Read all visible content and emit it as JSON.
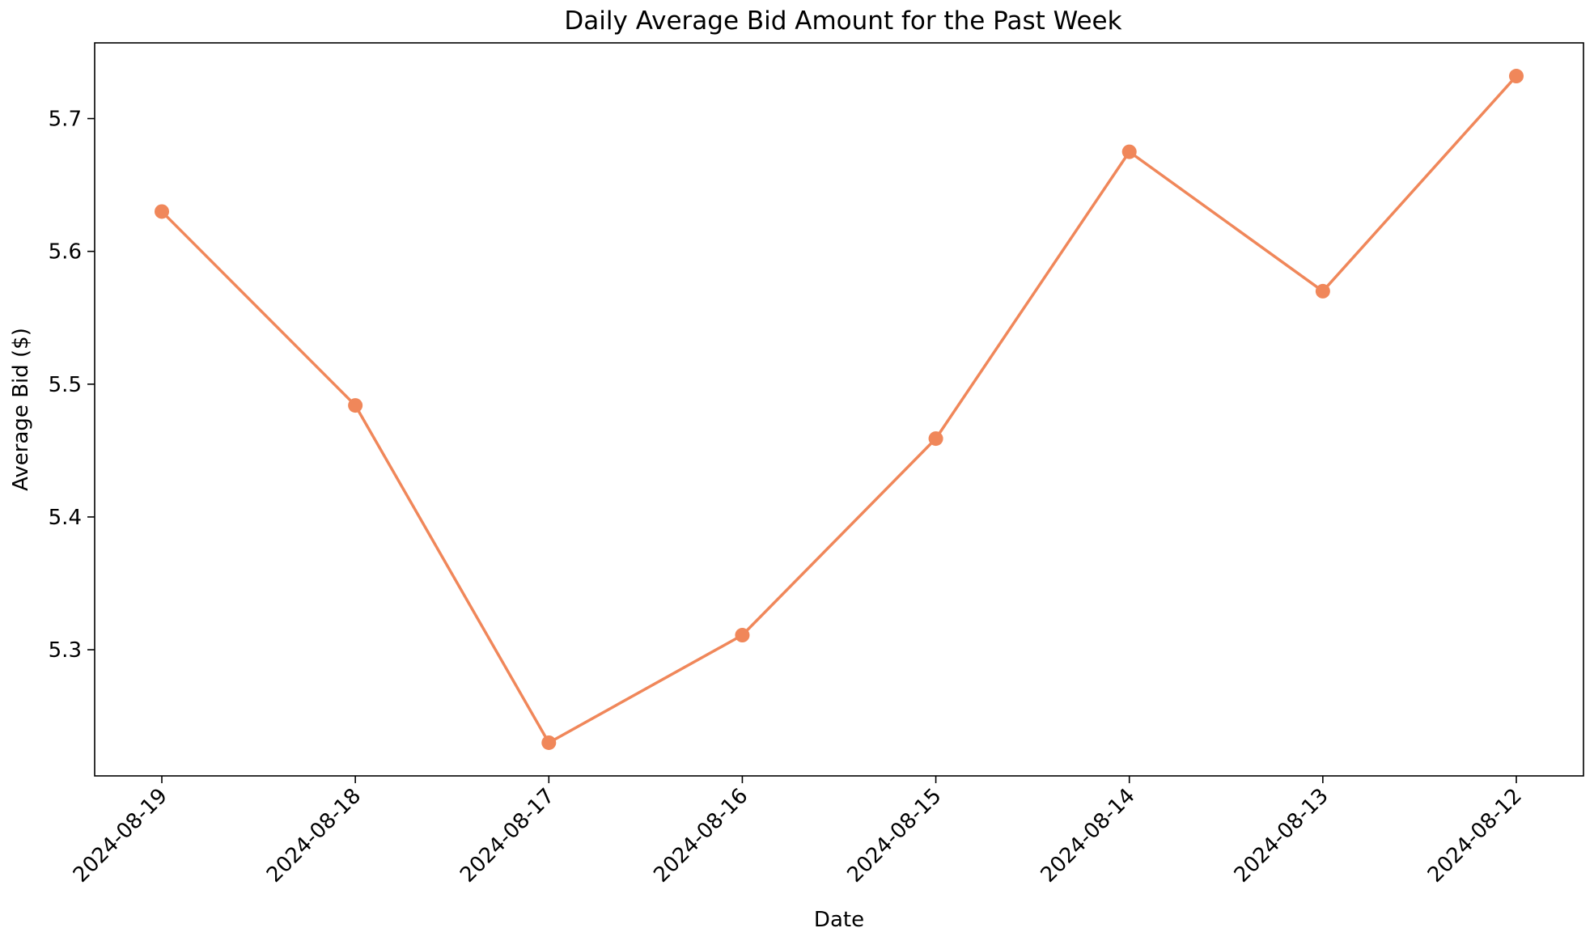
{
  "chart_data": {
    "type": "line",
    "title": "Daily Average Bid Amount for the Past Week",
    "xlabel": "Date",
    "ylabel": "Average Bid ($)",
    "categories": [
      "2024-08-19",
      "2024-08-18",
      "2024-08-17",
      "2024-08-16",
      "2024-08-15",
      "2024-08-14",
      "2024-08-13",
      "2024-08-12"
    ],
    "series": [
      {
        "values": [
          5.63,
          5.484,
          5.23,
          5.311,
          5.459,
          5.675,
          5.57,
          5.732
        ]
      }
    ],
    "yticks": [
      5.3,
      5.4,
      5.5,
      5.6,
      5.7
    ],
    "ylim": [
      5.205,
      5.757
    ],
    "grid": false,
    "legend": "none",
    "colors": {
      "line": "#f0875a",
      "marker": "#f0875a",
      "axes": "#000000"
    }
  }
}
